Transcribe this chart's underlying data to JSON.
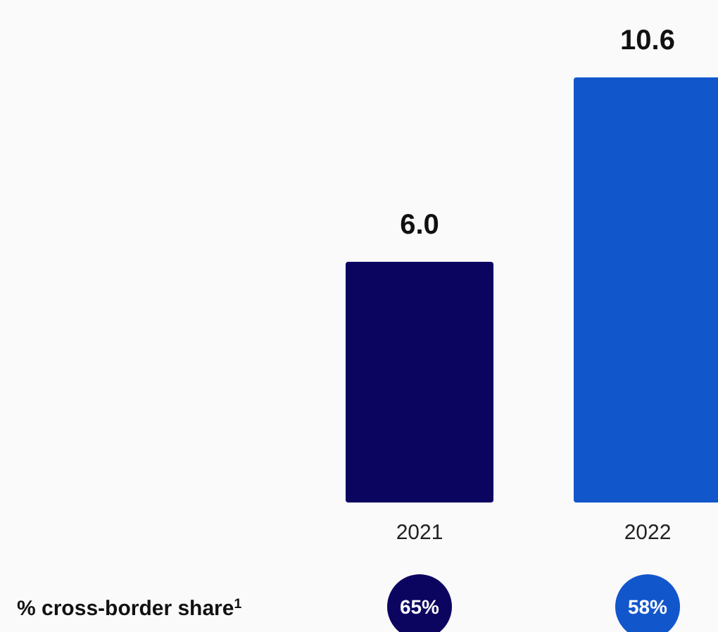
{
  "chart_data": {
    "type": "bar",
    "categories": [
      "2021",
      "2022"
    ],
    "values": [
      6,
      10.6
    ],
    "value_labels": [
      "6.0",
      "10.6"
    ],
    "colors": [
      "#0c0560",
      "#1256cc"
    ],
    "annotations": [
      "% cross-border share$^{1}$",
      "65%",
      "58%"
    ]
  }
}
